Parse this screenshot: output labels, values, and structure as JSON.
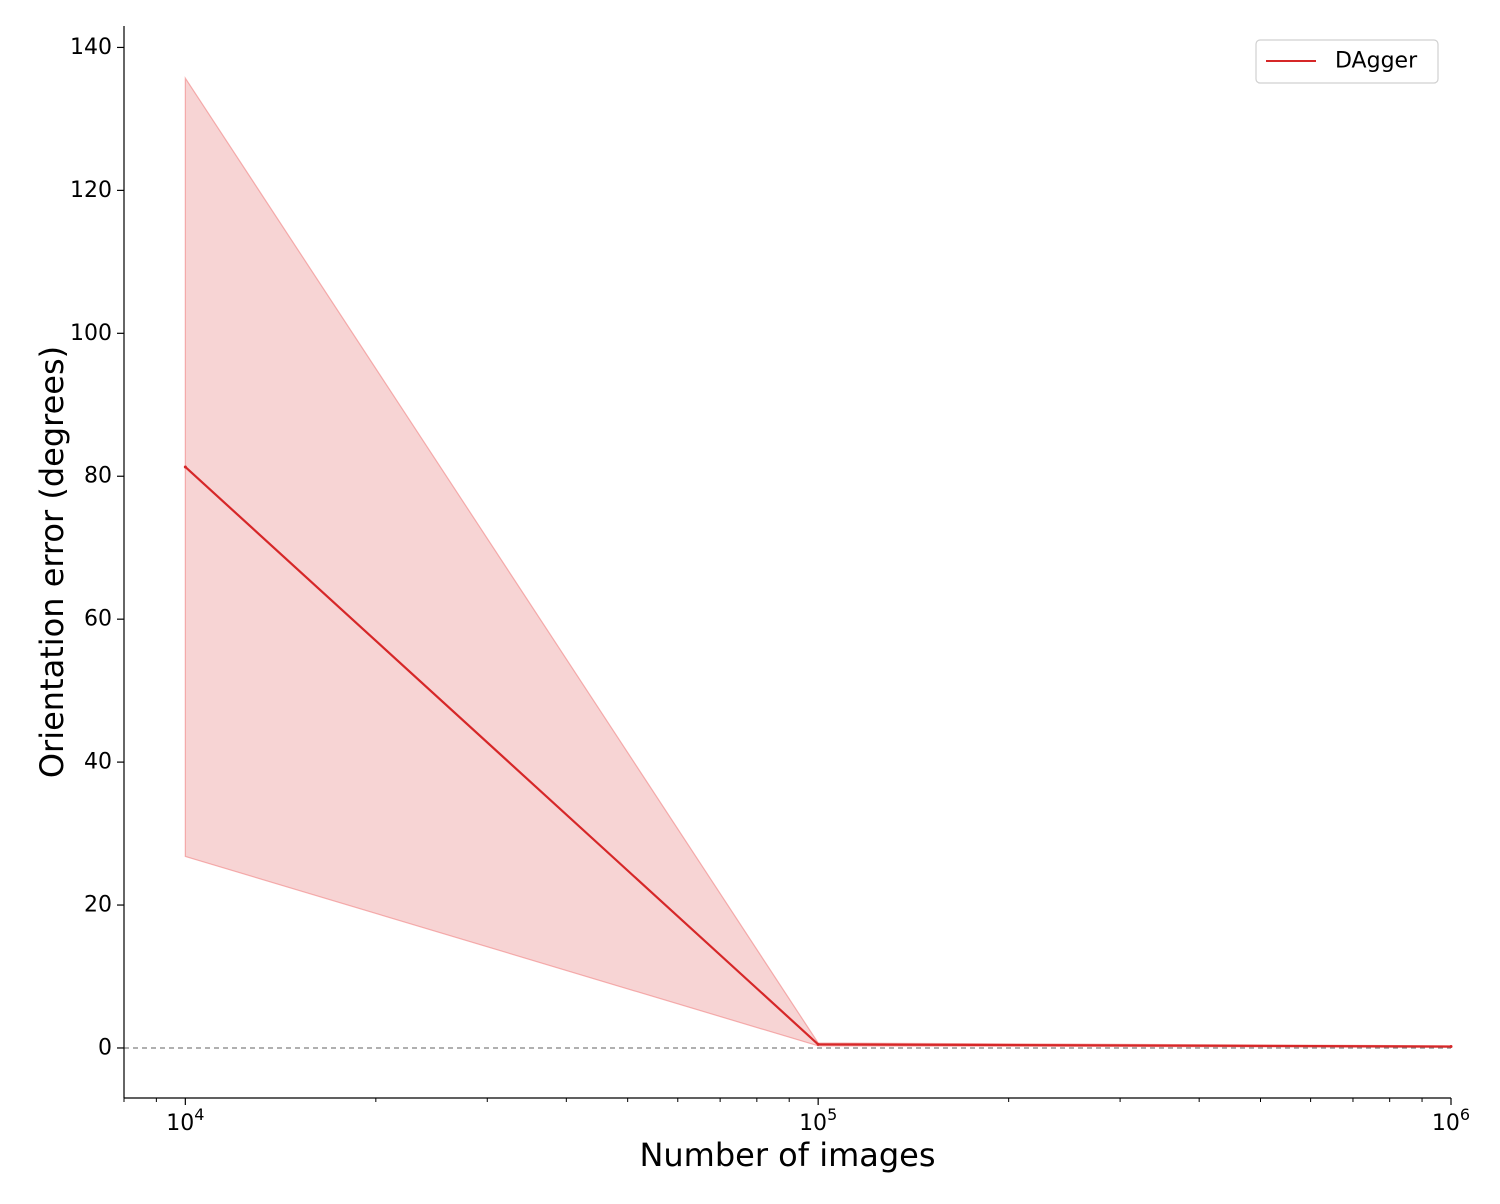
{
  "chart_data": {
    "type": "line",
    "title": "",
    "xlabel": "Number of images",
    "ylabel": "Orientation error (degrees)",
    "x_scale": "log",
    "xlim": [
      8000,
      1000000
    ],
    "ylim": [
      -7,
      143
    ],
    "x_ticks": [
      {
        "value": 10000,
        "base": "10",
        "exp": "4"
      },
      {
        "value": 100000,
        "base": "10",
        "exp": "5"
      },
      {
        "value": 1000000,
        "base": "10",
        "exp": "6"
      }
    ],
    "y_ticks": [
      {
        "value": 0,
        "label": "0"
      },
      {
        "value": 20,
        "label": "20"
      },
      {
        "value": 40,
        "label": "40"
      },
      {
        "value": 60,
        "label": "60"
      },
      {
        "value": 80,
        "label": "80"
      },
      {
        "value": 100,
        "label": "100"
      },
      {
        "value": 120,
        "label": "120"
      },
      {
        "value": 140,
        "label": "140"
      }
    ],
    "reference_line": {
      "y": 0,
      "style": "dashed",
      "color": "#808080"
    },
    "grid": false,
    "legend_position": "top-right",
    "series": [
      {
        "name": "DAgger",
        "color": "#d62728",
        "band_color": "#f08080",
        "x": [
          10000,
          100000,
          1000000
        ],
        "y": [
          81.3,
          0.5,
          0.2
        ],
        "lower": [
          26.8,
          0.3,
          0.1
        ],
        "upper": [
          135.7,
          0.7,
          0.3
        ]
      }
    ]
  }
}
